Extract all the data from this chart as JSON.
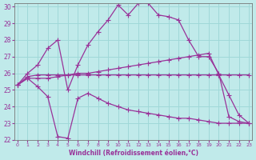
{
  "xlabel": "Windchill (Refroidissement éolien,°C)",
  "bg_color": "#c0eaea",
  "grid_color": "#a0d8d8",
  "line_color": "#993399",
  "xlim": [
    0,
    23
  ],
  "ylim": [
    22,
    30
  ],
  "xticks": [
    0,
    1,
    2,
    3,
    4,
    5,
    6,
    7,
    8,
    9,
    10,
    11,
    12,
    13,
    14,
    15,
    16,
    17,
    18,
    19,
    20,
    21,
    22,
    23
  ],
  "yticks": [
    22,
    23,
    24,
    25,
    26,
    27,
    28,
    29,
    30
  ],
  "line1_x": [
    0,
    1,
    2,
    3,
    4,
    5,
    6,
    7,
    8,
    9,
    10,
    11,
    12,
    13,
    14,
    15,
    16,
    17,
    18,
    19,
    20,
    21,
    22,
    23
  ],
  "line1_y": [
    25.3,
    26.0,
    26.5,
    27.5,
    28.0,
    25.0,
    26.5,
    27.7,
    28.5,
    29.2,
    30.1,
    29.5,
    30.2,
    30.2,
    29.5,
    29.4,
    29.2,
    28.0,
    27.0,
    27.0,
    26.0,
    23.4,
    23.1,
    23.0
  ],
  "line2_x": [
    0,
    1,
    2,
    3,
    4,
    5,
    6,
    7,
    8,
    9,
    10,
    11,
    12,
    13,
    14,
    15,
    16,
    17,
    18,
    19,
    20,
    21,
    22,
    23
  ],
  "line2_y": [
    25.3,
    25.7,
    25.2,
    24.6,
    22.2,
    22.1,
    24.5,
    24.8,
    24.5,
    24.2,
    24.0,
    23.8,
    23.7,
    23.6,
    23.5,
    23.4,
    23.3,
    23.3,
    23.2,
    23.1,
    23.0,
    23.0,
    23.0,
    23.0
  ],
  "line3_x": [
    0,
    1,
    2,
    3,
    4,
    5,
    6,
    7,
    8,
    9,
    10,
    11,
    12,
    13,
    14,
    15,
    16,
    17,
    18,
    19,
    20,
    21,
    22,
    23
  ],
  "line3_y": [
    25.3,
    25.7,
    25.7,
    25.7,
    25.8,
    25.9,
    26.0,
    26.0,
    26.1,
    26.2,
    26.3,
    26.4,
    26.5,
    26.6,
    26.7,
    26.8,
    26.9,
    27.0,
    27.1,
    27.2,
    25.9,
    24.7,
    23.5,
    23.0
  ],
  "line4_x": [
    0,
    1,
    2,
    3,
    4,
    5,
    6,
    7,
    8,
    9,
    10,
    11,
    12,
    13,
    14,
    15,
    16,
    17,
    18,
    19,
    20,
    21,
    22,
    23
  ],
  "line4_y": [
    25.3,
    25.8,
    25.9,
    25.9,
    25.9,
    25.9,
    25.9,
    25.9,
    25.9,
    25.9,
    25.9,
    25.9,
    25.9,
    25.9,
    25.9,
    25.9,
    25.9,
    25.9,
    25.9,
    25.9,
    25.9,
    25.9,
    25.9,
    25.9
  ]
}
